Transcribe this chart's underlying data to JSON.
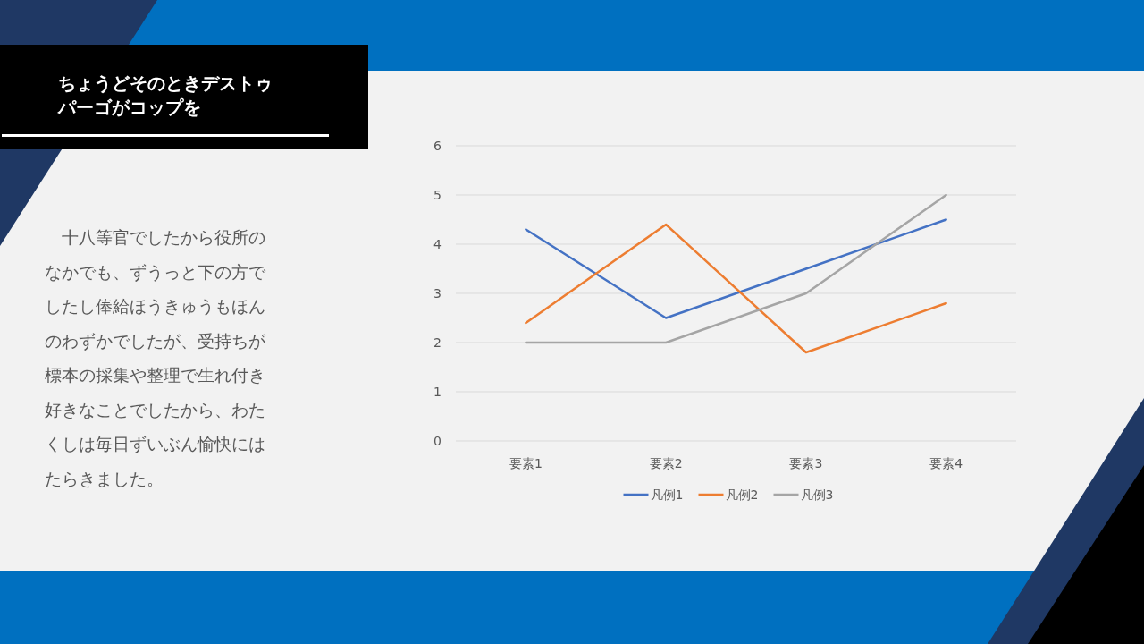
{
  "chart_data": {
    "type": "line",
    "title": "ちょうどそのときデストゥパーゴがコップを",
    "annotations": [
      "　十八等官でしたから役所のなかでも、ずうっと下の方でしたし俸給ほうきゅうもほんのわずかでしたが、受持ちが標本の採集や整理で生れ付き好きなことでしたから、わたくしは毎日ずいぶん愉快にはたらきました。"
    ],
    "categories": [
      "要素1",
      "要素2",
      "要素3",
      "要素4"
    ],
    "series": [
      {
        "name": "凡例1",
        "color": "#4472c4",
        "values": [
          4.3,
          2.5,
          3.5,
          4.5
        ]
      },
      {
        "name": "凡例2",
        "color": "#ed7d31",
        "values": [
          2.4,
          4.4,
          1.8,
          2.8
        ]
      },
      {
        "name": "凡例3",
        "color": "#a5a5a5",
        "values": [
          2,
          2,
          3,
          5
        ]
      }
    ],
    "ylim": [
      0,
      6
    ],
    "yticks": [
      0,
      1,
      2,
      3,
      4,
      5,
      6
    ],
    "grid": "y",
    "legend": "bottom",
    "marker": "none",
    "line_style": "solid"
  }
}
